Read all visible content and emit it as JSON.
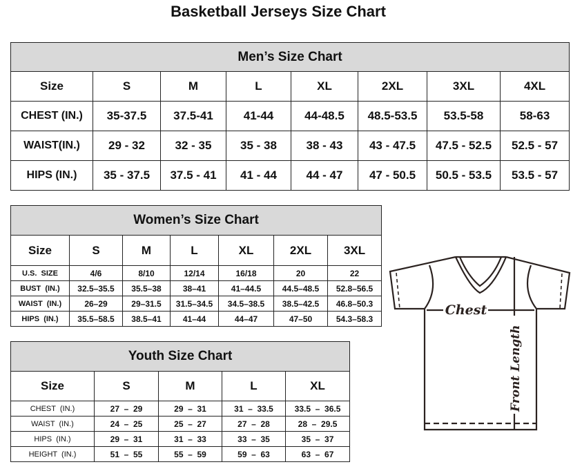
{
  "title": "Basketball Jerseys Size Chart",
  "men": {
    "heading": "Men’s Size Chart",
    "columns": [
      "Size",
      "S",
      "M",
      "L",
      "XL",
      "2XL",
      "3XL",
      "4XL"
    ],
    "rows": [
      [
        "CHEST (IN.)",
        "35-37.5",
        "37.5-41",
        "41-44",
        "44-48.5",
        "48.5-53.5",
        "53.5-58",
        "58-63"
      ],
      [
        "WAIST(IN.)",
        "29 - 32",
        "32 - 35",
        "35 - 38",
        "38 - 43",
        "43 - 47.5",
        "47.5 - 52.5",
        "52.5 - 57"
      ],
      [
        "HIPS (IN.)",
        "35 - 37.5",
        "37.5 - 41",
        "41 - 44",
        "44 - 47",
        "47 - 50.5",
        "50.5 - 53.5",
        "53.5 - 57"
      ]
    ]
  },
  "women": {
    "heading": "Women’s Size Chart",
    "columns": [
      "Size",
      "S",
      "M",
      "L",
      "XL",
      "2XL",
      "3XL"
    ],
    "rows": [
      [
        "U.S.  SIZE",
        "4/6",
        "8/10",
        "12/14",
        "16/18",
        "20",
        "22"
      ],
      [
        "BUST  (IN.)",
        "32.5–35.5",
        "35.5–38",
        "38–41",
        "41–44.5",
        "44.5–48.5",
        "52.8–56.5"
      ],
      [
        "WAIST  (IN.)",
        "26–29",
        "29–31.5",
        "31.5–34.5",
        "34.5–38.5",
        "38.5–42.5",
        "46.8–50.3"
      ],
      [
        "HIPS  (IN.)",
        "35.5–58.5",
        "38.5–41",
        "41–44",
        "44–47",
        "47–50",
        "54.3–58.3"
      ]
    ]
  },
  "youth": {
    "heading": "Youth Size Chart",
    "columns": [
      "Size",
      "S",
      "M",
      "L",
      "XL"
    ],
    "rows": [
      [
        "CHEST  (IN.)",
        "27  –  29",
        "29  –  31",
        "31  –  33.5",
        "33.5  –  36.5"
      ],
      [
        "WAIST  (IN.)",
        "24  –  25",
        "25  –  27",
        "27  –  28",
        "28  –  29.5"
      ],
      [
        "HIPS  (IN.)",
        "29  –  31",
        "31  –  33",
        "33  –  35",
        "35  –  37"
      ],
      [
        "HEIGHT  (IN.)",
        "51  –  55",
        "55  –  59",
        "59  –  63",
        "63  –  67"
      ]
    ]
  },
  "diagram": {
    "chest_label": "Chest",
    "length_label": "Front Length"
  },
  "colors": {
    "header_bg": "#d9d9d9",
    "line": "#2b2220"
  }
}
